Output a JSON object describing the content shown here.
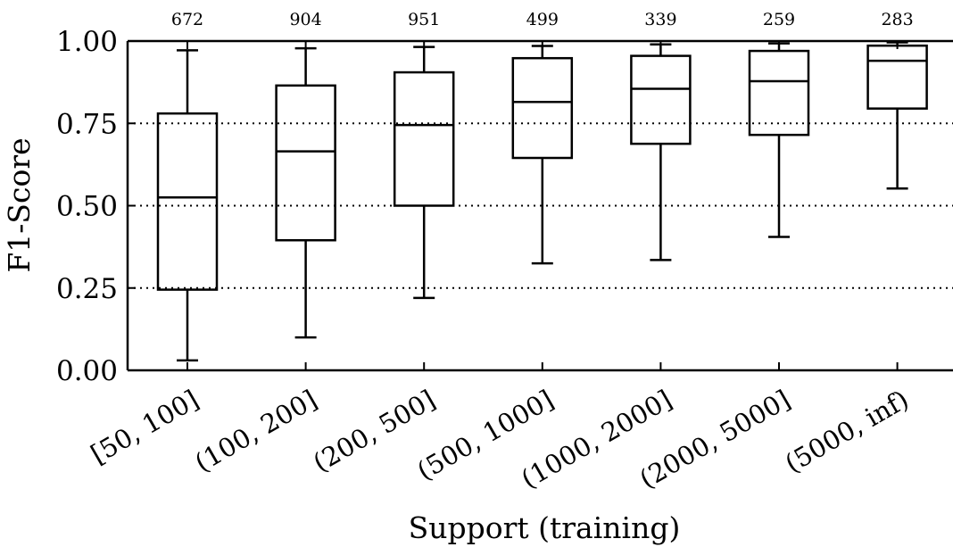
{
  "chart_data": {
    "type": "box",
    "xlabel": "Support (training)",
    "ylabel": "F1-Score",
    "ylim": [
      0,
      1
    ],
    "yticks": [
      "0.00",
      "0.25",
      "0.50",
      "0.75",
      "1.00"
    ],
    "ytick_values": [
      0,
      0.25,
      0.5,
      0.75,
      1.0
    ],
    "grid": "dotted horizontal at 0.25, 0.50, 0.75",
    "categories": [
      "[50, 100]",
      "(100, 200]",
      "(200, 500]",
      "(500, 1000]",
      "(1000, 2000]",
      "(2000, 5000]",
      "(5000, inf)"
    ],
    "counts": [
      "672",
      "904",
      "951",
      "499",
      "339",
      "259",
      "283"
    ],
    "boxes": [
      {
        "whisker_low": 0.03,
        "q1": 0.245,
        "median": 0.525,
        "q3": 0.78,
        "whisker_high": 0.972
      },
      {
        "whisker_low": 0.1,
        "q1": 0.395,
        "median": 0.665,
        "q3": 0.865,
        "whisker_high": 0.978
      },
      {
        "whisker_low": 0.22,
        "q1": 0.5,
        "median": 0.745,
        "q3": 0.905,
        "whisker_high": 0.982
      },
      {
        "whisker_low": 0.325,
        "q1": 0.645,
        "median": 0.815,
        "q3": 0.948,
        "whisker_high": 0.985
      },
      {
        "whisker_low": 0.335,
        "q1": 0.688,
        "median": 0.855,
        "q3": 0.955,
        "whisker_high": 0.99
      },
      {
        "whisker_low": 0.405,
        "q1": 0.715,
        "median": 0.878,
        "q3": 0.97,
        "whisker_high": 0.993
      },
      {
        "whisker_low": 0.552,
        "q1": 0.795,
        "median": 0.94,
        "q3": 0.986,
        "whisker_high": 0.996
      }
    ]
  }
}
